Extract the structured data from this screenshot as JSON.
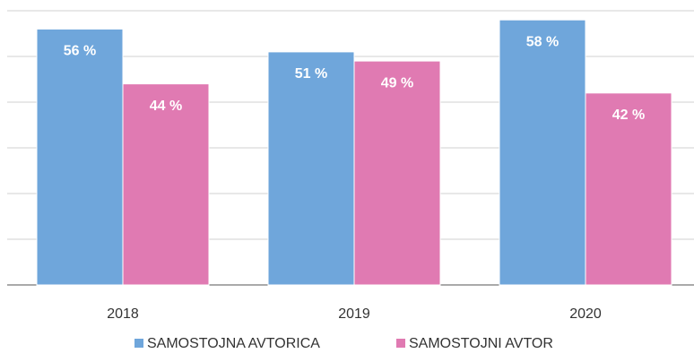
{
  "chart_data": {
    "type": "bar",
    "categories": [
      "2018",
      "2019",
      "2020"
    ],
    "series": [
      {
        "name": "SAMOSTOJNA AVTORICA",
        "color": "#6fa6db",
        "values": [
          56,
          51,
          58
        ],
        "value_labels": [
          "56 %",
          "51 %",
          "58 %"
        ]
      },
      {
        "name": "SAMOSTOJNI AVTOR",
        "color": "#e07ab2",
        "values": [
          44,
          49,
          42
        ],
        "value_labels": [
          "44 %",
          "49 %",
          "42 %"
        ]
      }
    ],
    "ylim": [
      0,
      60
    ],
    "yticks": [
      0,
      10,
      20,
      30,
      40,
      50,
      60
    ],
    "grid": true,
    "legend": "bottom"
  }
}
